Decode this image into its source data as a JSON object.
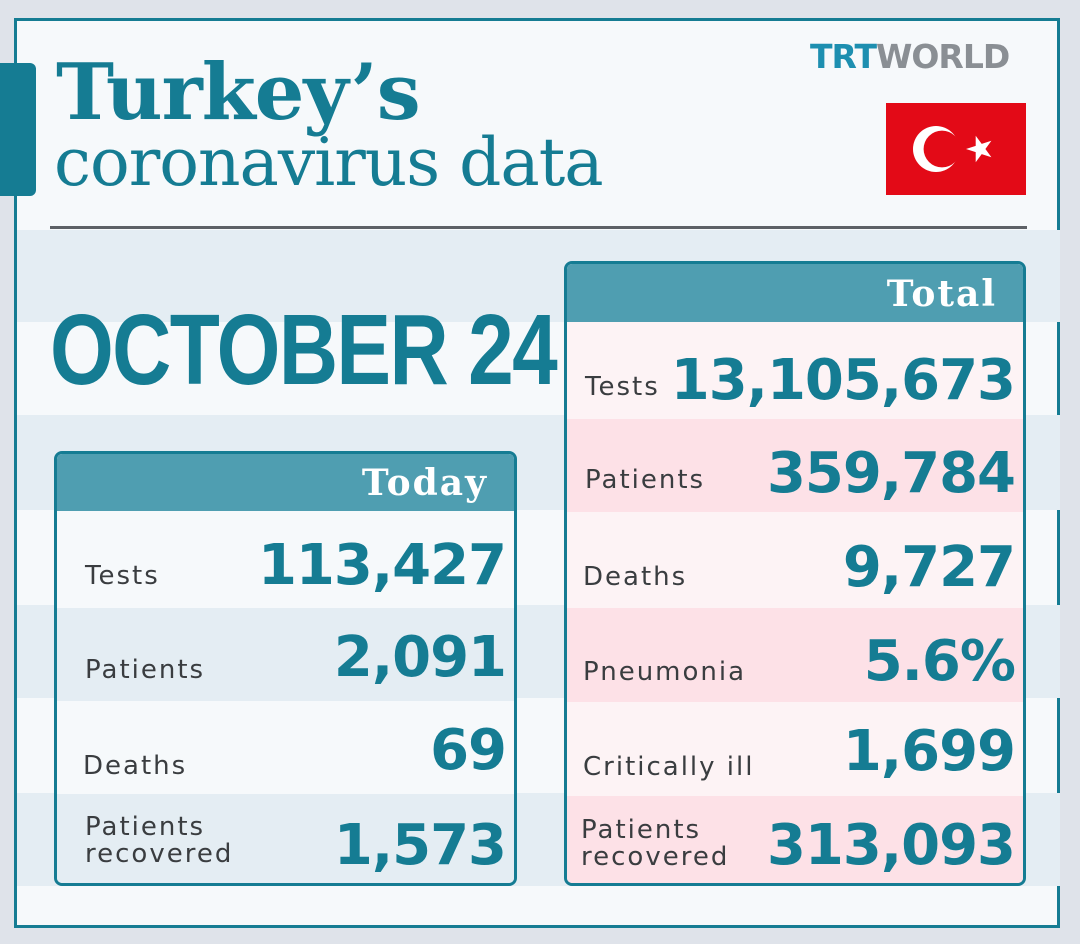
{
  "title": {
    "line1": "Turkey’s",
    "line2": "coronavirus data"
  },
  "logo": {
    "trt": "TRT",
    "world": "WORLD"
  },
  "flag": {
    "name": "turkey-flag",
    "color": "#e30a17"
  },
  "date": "OCTOBER 24",
  "colors": {
    "accent": "#157c93",
    "header": "#4f9eb1",
    "band": "#e4edf3",
    "total_pink": "#fde1e7",
    "total_light": "#fdf3f5"
  },
  "today": {
    "header": "Today",
    "rows": [
      {
        "label": "Tests",
        "value": "113,427"
      },
      {
        "label": "Patients",
        "value": "2,091"
      },
      {
        "label": "Deaths",
        "value": "69"
      },
      {
        "label": "Patients\nrecovered",
        "value": "1,573"
      }
    ]
  },
  "total": {
    "header": "Total",
    "rows": [
      {
        "label": "Tests",
        "value": "13,105,673"
      },
      {
        "label": "Patients",
        "value": "359,784"
      },
      {
        "label": "Deaths",
        "value": "9,727"
      },
      {
        "label": "Pneumonia",
        "value": "5.6%"
      },
      {
        "label": "Critically ill",
        "value": "1,699"
      },
      {
        "label": "Patients\nrecovered",
        "value": "313,093"
      }
    ]
  }
}
